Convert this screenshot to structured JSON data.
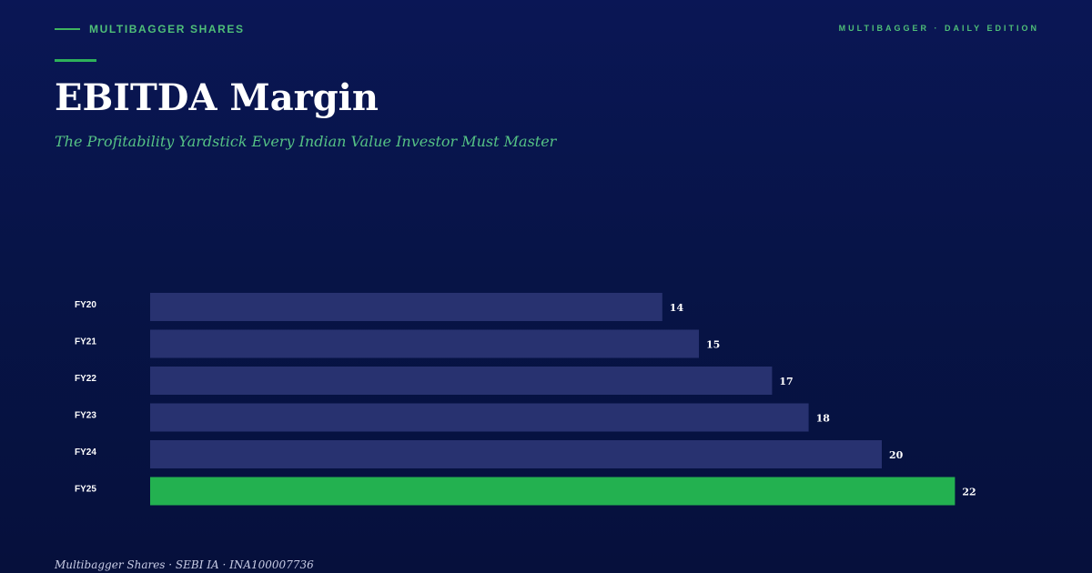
{
  "header": {
    "brand": "MULTIBAGGER SHARES",
    "edition": "MULTIBAGGER · DAILY EDITION"
  },
  "title": "EBITDA Margin",
  "subtitle": "The Profitability Yardstick Every Indian Value Investor Must Master",
  "footer": "Multibagger Shares · SEBI IA · INA100007736",
  "colors": {
    "background": "#071447",
    "accent": "#23b150",
    "bar": "#283270",
    "highlight_bar": "#23b150"
  },
  "chart_data": {
    "type": "bar",
    "orientation": "horizontal",
    "categories": [
      "FY20",
      "FY21",
      "FY22",
      "FY23",
      "FY24",
      "FY25"
    ],
    "values": [
      14,
      15,
      17,
      18,
      20,
      22
    ],
    "highlight_index": 5,
    "title": "",
    "xlabel": "",
    "ylabel": "",
    "xlim": [
      0,
      22
    ],
    "grid": false,
    "legend": "none"
  }
}
